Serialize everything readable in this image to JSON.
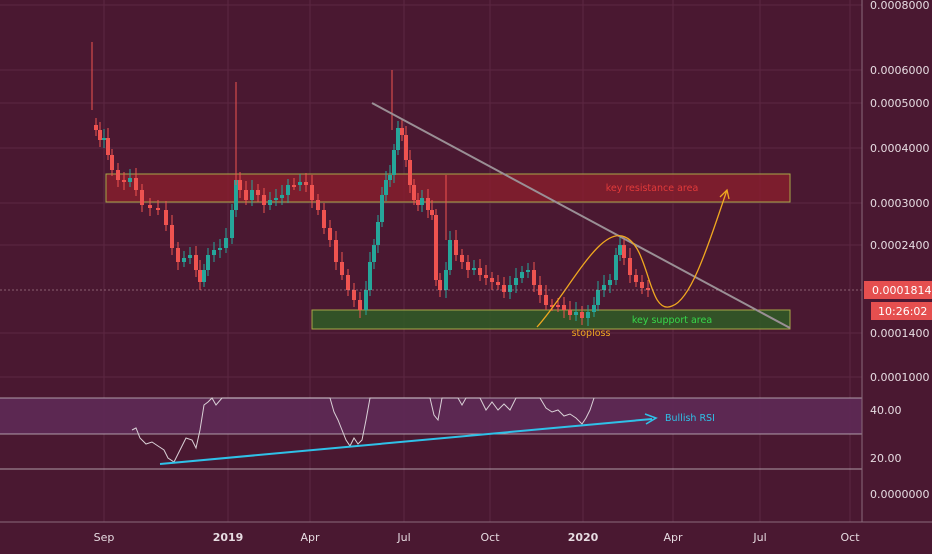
{
  "chart_data": {
    "type": "candlestick",
    "price_axis": {
      "scale": "log",
      "tick_labels": [
        "0.0008000",
        "0.0006000",
        "0.0005000",
        "0.0004000",
        "0.0003000",
        "0.0002400",
        "0.0001400",
        "0.0001000"
      ],
      "current_price": "0.0001814",
      "countdown": "10:26:02"
    },
    "rsi_axis": {
      "tick_labels": [
        "40.00",
        "20.00"
      ]
    },
    "lower_axis": {
      "tick_labels": [
        "0.0000000"
      ]
    },
    "x_tick_labels": [
      {
        "label": "Sep",
        "bold": false
      },
      {
        "label": "2019",
        "bold": true
      },
      {
        "label": "Apr",
        "bold": false
      },
      {
        "label": "Jul",
        "bold": false
      },
      {
        "label": "Oct",
        "bold": false
      },
      {
        "label": "2020",
        "bold": true
      },
      {
        "label": "Apr",
        "bold": false
      },
      {
        "label": "Jul",
        "bold": false
      },
      {
        "label": "Oct",
        "bold": false
      }
    ],
    "annotations": {
      "resistance": "key resistance area",
      "support": "key support area",
      "stoploss": "stoploss",
      "rsi": "Bullish RSI"
    },
    "colors": {
      "background": "#4a1831",
      "up": "#26a69a",
      "down": "#ef5350",
      "resistance_zone": "#8e1f2c",
      "support_zone": "#2e5d26",
      "trendline": "#9a8f95",
      "projection": "#f0a820",
      "rsi_trendline": "#2fc1e8"
    }
  }
}
